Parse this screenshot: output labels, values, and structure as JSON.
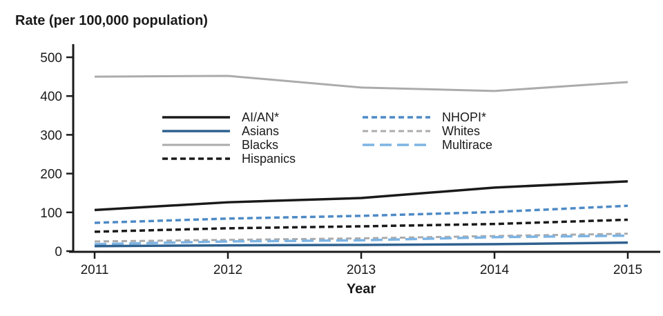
{
  "title": "Rate (per 100,000 population)",
  "chart_data": {
    "type": "line",
    "title": "",
    "ylabel": "Rate (per 100,000 population)",
    "xlabel": "Year",
    "x": [
      2011,
      2012,
      2013,
      2014,
      2015
    ],
    "ylim": [
      0,
      500
    ],
    "yticks": [
      0,
      100,
      200,
      300,
      400,
      500
    ],
    "grid": false,
    "legend_position": "inside-top-left-two-columns",
    "axis_color": "#1a1a1a",
    "series": [
      {
        "name": "AI/AN*",
        "color": "#1a1a1a",
        "style": "solid",
        "width": 3.5,
        "values": [
          106,
          126,
          137,
          164,
          180
        ]
      },
      {
        "name": "Asians",
        "color": "#2f618f",
        "style": "solid",
        "width": 3.5,
        "values": [
          13,
          15,
          16,
          18,
          22
        ]
      },
      {
        "name": "Blacks",
        "color": "#ababab",
        "style": "solid",
        "width": 3,
        "values": [
          450,
          452,
          422,
          413,
          436
        ]
      },
      {
        "name": "Hispanics",
        "color": "#1a1a1a",
        "style": "dashed",
        "width": 3.5,
        "values": [
          50,
          59,
          64,
          70,
          81
        ]
      },
      {
        "name": "NHOPI*",
        "color": "#4d8ac6",
        "style": "dashed",
        "width": 3.5,
        "values": [
          73,
          84,
          91,
          101,
          117
        ]
      },
      {
        "name": "Whites",
        "color": "#ababab",
        "style": "dashed",
        "width": 3,
        "values": [
          25,
          29,
          33,
          39,
          45
        ]
      },
      {
        "name": "Multirace",
        "color": "#7db4e4",
        "style": "long-dashed",
        "width": 3.5,
        "values": [
          18,
          25,
          28,
          36,
          40
        ]
      }
    ],
    "legend_columns": [
      [
        "AI/AN*",
        "Asians",
        "Blacks",
        "Hispanics"
      ],
      [
        "NHOPI*",
        "Whites",
        "Multirace"
      ]
    ]
  }
}
